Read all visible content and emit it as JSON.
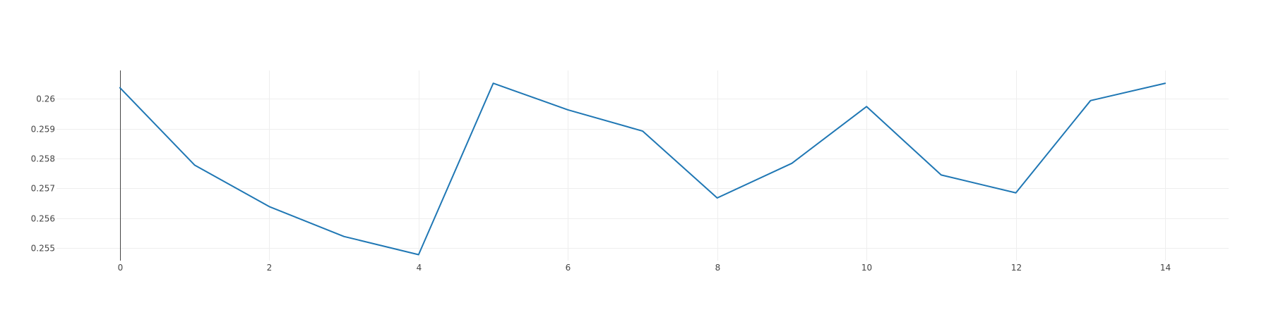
{
  "chart_data": {
    "type": "line",
    "title": "",
    "xlabel": "",
    "ylabel": "",
    "x": [
      0,
      1,
      2,
      3,
      4,
      5,
      6,
      7,
      8,
      9,
      10,
      11,
      12,
      13,
      14
    ],
    "series": [
      {
        "values": [
          0.26037,
          0.25778,
          0.25639,
          0.25539,
          0.25478,
          0.26052,
          0.25963,
          0.25892,
          0.25668,
          0.25784,
          0.25974,
          0.25745,
          0.25685,
          0.25994,
          0.26052
        ],
        "color": "#1f77b4"
      }
    ],
    "xlim": [
      -0.85,
      14.85
    ],
    "ylim": [
      0.25458,
      0.26095
    ],
    "x_ticks": [
      0,
      2,
      4,
      6,
      8,
      10,
      12,
      14
    ],
    "x_tick_labels": [
      "0",
      "2",
      "4",
      "6",
      "8",
      "10",
      "12",
      "14"
    ],
    "y_ticks": [
      0.255,
      0.256,
      0.257,
      0.258,
      0.259,
      0.26
    ],
    "y_tick_labels": [
      "0.255",
      "0.256",
      "0.257",
      "0.258",
      "0.259",
      "0.26"
    ],
    "grid": true,
    "legend": "none"
  }
}
